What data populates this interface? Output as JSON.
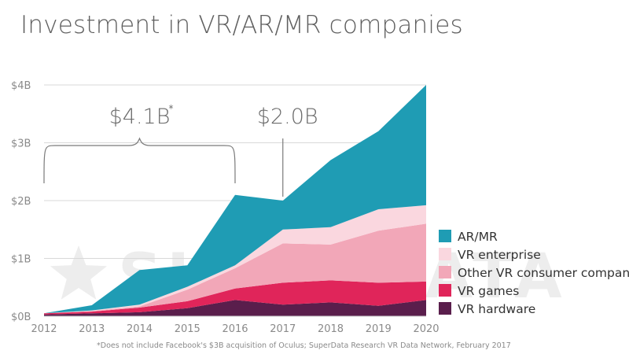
{
  "title": "Investment in VR/AR/MR companies",
  "footnote": "*Does not include Facebook's $3B acquisition of Oculus; SuperData Research VR Data Network, February 2017",
  "watermark": "SUPERDATA",
  "chart_data": {
    "type": "area",
    "stacked": true,
    "title": "Investment in VR/AR/MR companies",
    "xlabel": "",
    "ylabel": "",
    "x": [
      2012,
      2013,
      2014,
      2015,
      2016,
      2017,
      2018,
      2019,
      2020
    ],
    "x_tick_labels": [
      "2012",
      "2013",
      "2014",
      "2015",
      "2016",
      "2017",
      "2018",
      "2019",
      "2020"
    ],
    "y_ticks": [
      0,
      1,
      2,
      3,
      4
    ],
    "y_tick_labels": [
      "$0B",
      "$1B",
      "$2B",
      "$3B",
      "$4B"
    ],
    "ylim": [
      0,
      4
    ],
    "grid": "horizontal",
    "legend_position": "right",
    "series": [
      {
        "name": "VR hardware",
        "color": "#5a1e4c",
        "values": [
          0.03,
          0.05,
          0.07,
          0.14,
          0.28,
          0.2,
          0.24,
          0.18,
          0.28
        ]
      },
      {
        "name": "VR games",
        "color": "#e0255a",
        "values": [
          0.02,
          0.03,
          0.08,
          0.12,
          0.2,
          0.38,
          0.38,
          0.4,
          0.32
        ]
      },
      {
        "name": "Other VR consumer companies",
        "color": "#f2a7b8",
        "values": [
          0.0,
          0.01,
          0.02,
          0.2,
          0.35,
          0.68,
          0.62,
          0.9,
          1.0
        ]
      },
      {
        "name": "VR enterprise",
        "color": "#fad7df",
        "values": [
          0.0,
          0.01,
          0.03,
          0.05,
          0.05,
          0.24,
          0.3,
          0.37,
          0.32
        ]
      },
      {
        "name": "AR/MR",
        "color": "#1f9cb4",
        "values": [
          0.0,
          0.09,
          0.6,
          0.37,
          1.22,
          0.5,
          1.16,
          1.35,
          2.08
        ]
      }
    ],
    "annotations": [
      {
        "text": "$4.1B",
        "superscript": "*",
        "span": [
          2012,
          2016
        ]
      },
      {
        "text": "$2.0B",
        "at": 2017
      }
    ]
  }
}
